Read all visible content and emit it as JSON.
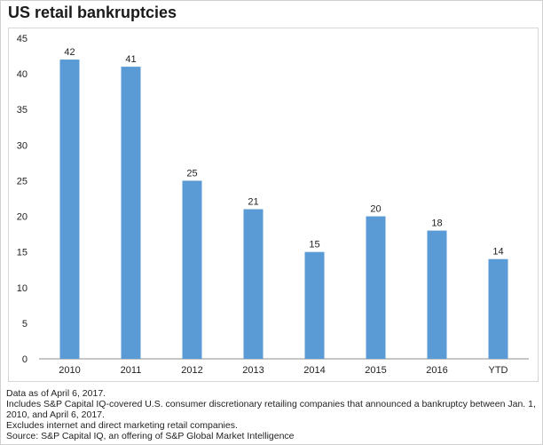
{
  "title": "US retail bankruptcies",
  "notes": [
    "Data as of April 6, 2017.",
    "Includes S&P Capital IQ-covered U.S. consumer discretionary retailing companies that announced a bankruptcy between Jan. 1,",
    "2010, and April 6, 2017.",
    "Excludes internet and direct marketing retail companies.",
    "Source: S&P Capital IQ, an offering of S&P Global Market Intelligence"
  ],
  "colors": {
    "bar": "#5b9bd5",
    "axis": "#8c8c8c",
    "text": "#222222"
  },
  "chart_data": {
    "type": "bar",
    "categories": [
      "2010",
      "2011",
      "2012",
      "2013",
      "2014",
      "2015",
      "2016",
      "YTD"
    ],
    "values": [
      42,
      41,
      25,
      21,
      15,
      20,
      18,
      14
    ],
    "data_labels": [
      "42",
      "41",
      "25",
      "21",
      "15",
      "20",
      "18",
      "14"
    ],
    "title": "US retail bankruptcies",
    "xlabel": "",
    "ylabel": "",
    "ylim": [
      0,
      45
    ],
    "yticks": [
      0,
      5,
      10,
      15,
      20,
      25,
      30,
      35,
      40,
      45
    ],
    "grid": false,
    "legend": "none"
  }
}
